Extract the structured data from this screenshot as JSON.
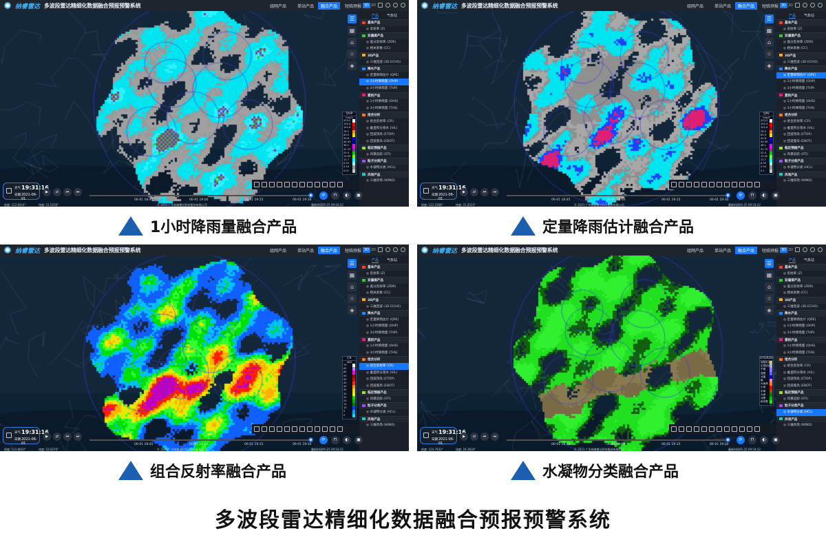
{
  "app": {
    "logo": "纳睿雷达",
    "title": "多波段雷达精细化数据融合预报预警系统",
    "nav": [
      "组网产品",
      "单站产品",
      "融合产品",
      "短临预报"
    ],
    "active_nav": 2,
    "view_modes": [
      "3D",
      "2D"
    ],
    "side_tabs": [
      "产品",
      "气象站"
    ],
    "groups": [
      {
        "name": "基本产品",
        "color": "#e8452c",
        "items": [
          "反射率 (Z)"
        ]
      },
      {
        "name": "双偏振产品",
        "color": "#3fc23a",
        "items": [
          "差分反射率 (ZDR)",
          "相关系数 (CC)"
        ]
      },
      {
        "name": "3D产品",
        "color": "#f5a623",
        "items": [
          "三维回波 (3D ECHO)"
        ]
      },
      {
        "name": "降水产品",
        "color": "#1e88ff",
        "items": [
          "定量降雨估计 (QPE)",
          "1小时降雨量 (OHP)",
          "3小时降雨量 (THP)"
        ]
      },
      {
        "name": "累积产品",
        "color": "#e0208a",
        "items": [
          "1小时降雨量 (OHS)",
          "3小时降雨量 (THS)"
        ]
      },
      {
        "name": "组合分析",
        "color": "#f07a20",
        "items": [
          "组合反射率 (CR)",
          "垂直积分液水 (VIL)",
          "回波顶高 (ETOP)",
          "回波底高 (EBOT)"
        ]
      },
      {
        "name": "临近预报产品",
        "color": "#9be03a",
        "items": [
          "风暴追踪 (STI)"
        ]
      },
      {
        "name": "粒子分类产品",
        "color": "#9a50e0",
        "items": [
          "水凝物分类 (HCL)"
        ]
      },
      {
        "name": "风场产品",
        "color": "#20c8c0",
        "items": [
          "三维风场 (WIND)"
        ]
      }
    ],
    "time_label": "天气",
    "time": "19:31:16",
    "date_label": "日期",
    "date": "2021-06-01",
    "timeline": [
      "06-01 18:45",
      "06-01 19:00",
      "06-01 19:15",
      "06-01 19:30"
    ],
    "copyright": "© 2021 广东纳睿雷达科技股份有限公司",
    "update": "最新时间05-25 09:54:22"
  },
  "panels": [
    {
      "caption": "1小时降雨量融合产品",
      "active_group": 3,
      "active_item": 1,
      "lon": "经度: 112.9414°",
      "lat": "纬度: 21.5250°",
      "legend": {
        "title": "OHP",
        "unit": "mm/h",
        "labels": [
          "203.2",
          "152.4",
          "101.6",
          "76.2",
          "63.5",
          "50.8",
          "44.45",
          "38.1",
          "31.75",
          "25.4",
          "19.05",
          "12.7",
          "6.35",
          "2.54",
          "0.01"
        ],
        "colors": [
          "#ffffff",
          "#ff0000",
          "#c00000",
          "#ff8c00",
          "#ffd700",
          "#0000ff",
          "#0000a0",
          "#ff00ff",
          "#a020c0",
          "#00d000",
          "#80ff00",
          "#00ffff",
          "#a0ffff",
          "#9a9a9a",
          "#c8c8c8"
        ]
      },
      "radar_palette": [
        "#a0a0a0",
        "#9a9a9a",
        "#00e5f0",
        "#30f0ff",
        "#30c030",
        "#a020c0"
      ]
    },
    {
      "caption": "定量降雨估计融合产品",
      "active_group": 3,
      "active_item": 0,
      "lon": "经度: 112.2268°",
      "lat": "纬度: 21.4523°",
      "legend": {
        "title": "QPE",
        "unit": "mm/h",
        "labels": [
          "203.2",
          "152.4",
          "101.6",
          "76.2",
          "63.5",
          "50.8",
          "44.45",
          "38.1",
          "31.75",
          "25.4",
          "19.05",
          "12.7",
          "6.35",
          "2.54",
          "0.1"
        ],
        "colors": [
          "#ffffff",
          "#ff0000",
          "#c00000",
          "#ff8c00",
          "#ffd700",
          "#0000ff",
          "#0000a0",
          "#ff00ff",
          "#a020c0",
          "#00d000",
          "#80ff00",
          "#00ffff",
          "#a0ffff",
          "#9a9a9a",
          "#c8c8c8"
        ]
      },
      "radar_palette": [
        "#a8a8a8",
        "#909090",
        "#00e5f0",
        "#2040ff",
        "#c020c0",
        "#ff2020"
      ]
    },
    {
      "caption": "组合反射率融合产品",
      "active_group": 5,
      "active_item": 0,
      "lon": "经度: 111.8610°",
      "lat": "纬度: 23.0276°",
      "legend": {
        "title": "CR",
        "unit": "dBZ",
        "labels": [
          "70",
          "65",
          "60",
          "55",
          "50",
          "45",
          "40",
          "35",
          "30",
          "25",
          "20",
          "15",
          "10",
          "5",
          "0"
        ],
        "colors": [
          "#ffffff",
          "#c080ff",
          "#ff00ff",
          "#a00000",
          "#e00000",
          "#ff3000",
          "#ff9000",
          "#ffd000",
          "#e0ff00",
          "#00e000",
          "#00b000",
          "#008000",
          "#0040ff",
          "#00a0ff",
          "#00e0ff"
        ]
      },
      "radar_palette": [
        "#1060ff",
        "#00c0ff",
        "#00e000",
        "#30ff30",
        "#e8e800",
        "#ffb000",
        "#ff2000",
        "#c000c0"
      ]
    },
    {
      "caption": "水凝物分类融合产品",
      "active_group": 7,
      "active_item": 0,
      "lon": "经度: 110.7933°",
      "lat": "纬度: 24.3834°",
      "legend": {
        "title": "HYDROS",
        "unit": "",
        "labels": [
          "地物杂波",
          "生物回波",
          "干雪",
          "湿雪",
          "冰晶",
          "霰",
          "大雨滴",
          "小雨",
          "中雨",
          "大雨",
          "冰雹",
          "雨夹雹"
        ],
        "colors": [
          "#d0c080",
          "#a0a0ff",
          "#8080ff",
          "#6060ff",
          "#0000ff",
          "#ff80c0",
          "#ff8000",
          "#ff0000",
          "#806000",
          "#008000",
          "#00c000",
          "#00ff00"
        ]
      },
      "radar_palette": [
        "#20e020",
        "#30f030",
        "#7a6a45",
        "#8a7a50",
        "#106010",
        "#1a8a1a"
      ]
    }
  ],
  "footer_title": "多波段雷达精细化数据融合预报预警系统"
}
